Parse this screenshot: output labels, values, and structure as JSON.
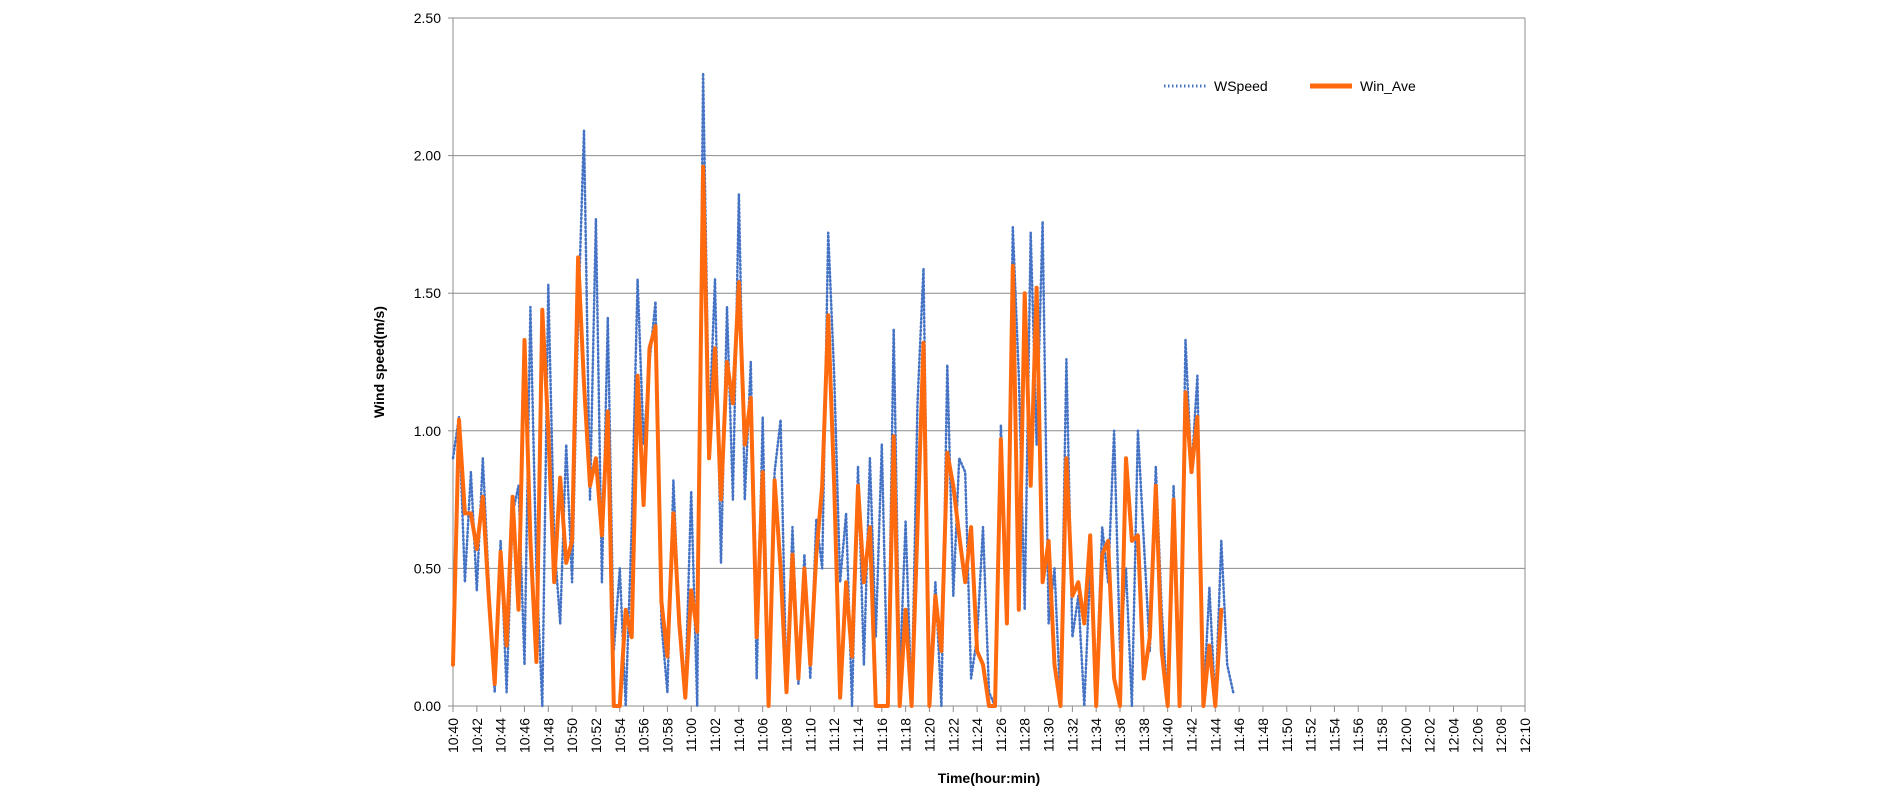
{
  "chart_data": {
    "type": "line",
    "xlabel": "Time(hour:min)",
    "ylabel": "Wind speed(m/s)",
    "ylim": [
      0,
      2.5
    ],
    "y_ticks": [
      "0.00",
      "0.50",
      "1.00",
      "1.50",
      "2.00",
      "2.50"
    ],
    "x_ticks": [
      "10:40",
      "10:42",
      "10:44",
      "10:46",
      "10:48",
      "10:50",
      "10:52",
      "10:54",
      "10:56",
      "10:58",
      "11:00",
      "11:02",
      "11:04",
      "11:06",
      "11:08",
      "11:10",
      "11:12",
      "11:14",
      "11:16",
      "11:18",
      "11:20",
      "11:22",
      "11:24",
      "11:26",
      "11:28",
      "11:30",
      "11:32",
      "11:34",
      "11:36",
      "11:38",
      "11:40",
      "11:42",
      "11:44",
      "11:46",
      "11:48",
      "11:50",
      "11:52",
      "11:54",
      "11:56",
      "11:58",
      "12:00",
      "12:02",
      "12:04",
      "12:06",
      "12:08",
      "12:10"
    ],
    "grid": "horizontal",
    "legend_position": "top-right",
    "colors": {
      "WSpeed": "#4472C4",
      "Win_Ave": "#FF6A0E"
    },
    "series": [
      {
        "name": "WSpeed",
        "style": "dotted",
        "points": [
          [
            "10:40",
            0.9
          ],
          [
            "10:40.5",
            1.05
          ],
          [
            "10:41",
            0.45
          ],
          [
            "10:41.5",
            0.85
          ],
          [
            "10:42",
            0.42
          ],
          [
            "10:42.5",
            0.9
          ],
          [
            "10:43",
            0.45
          ],
          [
            "10:43.5",
            0.05
          ],
          [
            "10:44",
            0.6
          ],
          [
            "10:44.5",
            0.05
          ],
          [
            "10:45",
            0.7
          ],
          [
            "10:45.5",
            0.8
          ],
          [
            "10:46",
            0.15
          ],
          [
            "10:46.5",
            1.45
          ],
          [
            "10:47",
            0.5
          ],
          [
            "10:47.5",
            0.0
          ],
          [
            "10:48",
            1.53
          ],
          [
            "10:48.5",
            0.6
          ],
          [
            "10:49",
            0.3
          ],
          [
            "10:49.5",
            0.95
          ],
          [
            "10:50",
            0.45
          ],
          [
            "10:50.5",
            1.4
          ],
          [
            "10:51",
            2.09
          ],
          [
            "10:51.5",
            0.75
          ],
          [
            "10:52",
            1.77
          ],
          [
            "10:52.5",
            0.45
          ],
          [
            "10:53",
            1.41
          ],
          [
            "10:53.5",
            0.2
          ],
          [
            "10:54",
            0.5
          ],
          [
            "10:54.5",
            0.0
          ],
          [
            "10:55",
            0.65
          ],
          [
            "10:55.5",
            1.55
          ],
          [
            "10:56",
            0.95
          ],
          [
            "10:56.5",
            1.25
          ],
          [
            "10:57",
            1.47
          ],
          [
            "10:57.5",
            0.3
          ],
          [
            "10:58",
            0.05
          ],
          [
            "10:58.5",
            0.82
          ],
          [
            "10:59",
            0.3
          ],
          [
            "10:59.5",
            0.05
          ],
          [
            "11:00",
            0.78
          ],
          [
            "11:00.5",
            0.0
          ],
          [
            "11:01",
            2.3
          ],
          [
            "11:01.5",
            1.0
          ],
          [
            "11:02",
            1.55
          ],
          [
            "11:02.5",
            0.52
          ],
          [
            "11:03",
            1.45
          ],
          [
            "11:03.5",
            0.75
          ],
          [
            "11:04",
            1.86
          ],
          [
            "11:04.5",
            0.75
          ],
          [
            "11:05",
            1.25
          ],
          [
            "11:05.5",
            0.1
          ],
          [
            "11:06",
            1.05
          ],
          [
            "11:06.5",
            0.0
          ],
          [
            "11:07",
            0.85
          ],
          [
            "11:07.5",
            1.04
          ],
          [
            "11:08",
            0.05
          ],
          [
            "11:08.5",
            0.65
          ],
          [
            "11:09",
            0.08
          ],
          [
            "11:09.5",
            0.55
          ],
          [
            "11:10",
            0.1
          ],
          [
            "11:10.5",
            0.68
          ],
          [
            "11:11",
            0.5
          ],
          [
            "11:11.5",
            1.72
          ],
          [
            "11:12",
            1.2
          ],
          [
            "11:12.5",
            0.45
          ],
          [
            "11:13",
            0.7
          ],
          [
            "11:13.5",
            0.0
          ],
          [
            "11:14",
            0.87
          ],
          [
            "11:14.5",
            0.15
          ],
          [
            "11:15",
            0.9
          ],
          [
            "11:15.5",
            0.25
          ],
          [
            "11:16",
            0.95
          ],
          [
            "11:16.5",
            0.0
          ],
          [
            "11:17",
            1.37
          ],
          [
            "11:17.5",
            0.1
          ],
          [
            "11:18",
            0.67
          ],
          [
            "11:18.5",
            0.0
          ],
          [
            "11:19",
            1.1
          ],
          [
            "11:19.5",
            1.59
          ],
          [
            "11:20",
            0.05
          ],
          [
            "11:20.5",
            0.45
          ],
          [
            "11:21",
            0.0
          ],
          [
            "11:21.5",
            1.24
          ],
          [
            "11:22",
            0.4
          ],
          [
            "11:22.5",
            0.9
          ],
          [
            "11:23",
            0.85
          ],
          [
            "11:23.5",
            0.1
          ],
          [
            "11:24",
            0.25
          ],
          [
            "11:24.5",
            0.65
          ],
          [
            "11:25",
            0.05
          ],
          [
            "11:25.5",
            0.0
          ],
          [
            "11:26",
            1.02
          ],
          [
            "11:26.5",
            0.3
          ],
          [
            "11:27",
            1.74
          ],
          [
            "11:27.5",
            1.2
          ],
          [
            "11:28",
            0.35
          ],
          [
            "11:28.5",
            1.72
          ],
          [
            "11:29",
            0.95
          ],
          [
            "11:29.5",
            1.76
          ],
          [
            "11:30",
            0.3
          ],
          [
            "11:30.5",
            0.5
          ],
          [
            "11:31",
            0.0
          ],
          [
            "11:31.5",
            1.26
          ],
          [
            "11:32",
            0.25
          ],
          [
            "11:32.5",
            0.4
          ],
          [
            "11:33",
            0.0
          ],
          [
            "11:33.5",
            0.5
          ],
          [
            "11:34",
            0.05
          ],
          [
            "11:34.5",
            0.65
          ],
          [
            "11:35",
            0.45
          ],
          [
            "11:35.5",
            1.0
          ],
          [
            "11:36",
            0.2
          ],
          [
            "11:36.5",
            0.5
          ],
          [
            "11:37",
            0.0
          ],
          [
            "11:37.5",
            1.0
          ],
          [
            "11:38",
            0.6
          ],
          [
            "11:38.5",
            0.2
          ],
          [
            "11:39",
            0.87
          ],
          [
            "11:39.5",
            0.35
          ],
          [
            "11:40",
            0.0
          ],
          [
            "11:40.5",
            0.8
          ],
          [
            "11:41",
            0.0
          ],
          [
            "11:41.5",
            1.33
          ],
          [
            "11:42",
            0.85
          ],
          [
            "11:42.5",
            1.2
          ],
          [
            "11:43",
            0.0
          ],
          [
            "11:43.5",
            0.43
          ],
          [
            "11:44",
            0.0
          ],
          [
            "11:44.5",
            0.6
          ],
          [
            "11:45",
            0.15
          ],
          [
            "11:45.5",
            0.05
          ]
        ]
      },
      {
        "name": "Win_Ave",
        "style": "solid",
        "points": [
          [
            "10:40",
            0.15
          ],
          [
            "10:40.5",
            1.04
          ],
          [
            "10:41",
            0.7
          ],
          [
            "10:41.5",
            0.7
          ],
          [
            "10:42",
            0.57
          ],
          [
            "10:42.5",
            0.76
          ],
          [
            "10:43",
            0.4
          ],
          [
            "10:43.5",
            0.08
          ],
          [
            "10:44",
            0.56
          ],
          [
            "10:44.5",
            0.22
          ],
          [
            "10:45",
            0.76
          ],
          [
            "10:45.5",
            0.35
          ],
          [
            "10:46",
            1.33
          ],
          [
            "10:46.5",
            0.6
          ],
          [
            "10:47",
            0.16
          ],
          [
            "10:47.5",
            1.44
          ],
          [
            "10:48",
            1.0
          ],
          [
            "10:48.5",
            0.45
          ],
          [
            "10:49",
            0.83
          ],
          [
            "10:49.5",
            0.52
          ],
          [
            "10:50",
            0.6
          ],
          [
            "10:50.5",
            1.63
          ],
          [
            "10:51",
            1.17
          ],
          [
            "10:51.5",
            0.8
          ],
          [
            "10:52",
            0.9
          ],
          [
            "10:52.5",
            0.62
          ],
          [
            "10:53",
            1.07
          ],
          [
            "10:53.5",
            0.0
          ],
          [
            "10:54",
            0.0
          ],
          [
            "10:54.5",
            0.35
          ],
          [
            "10:55",
            0.25
          ],
          [
            "10:55.5",
            1.2
          ],
          [
            "10:56",
            0.73
          ],
          [
            "10:56.5",
            1.3
          ],
          [
            "10:57",
            1.38
          ],
          [
            "10:57.5",
            0.38
          ],
          [
            "10:58",
            0.18
          ],
          [
            "10:58.5",
            0.7
          ],
          [
            "10:59",
            0.3
          ],
          [
            "10:59.5",
            0.03
          ],
          [
            "11:00",
            0.42
          ],
          [
            "11:00.5",
            0.27
          ],
          [
            "11:01",
            1.96
          ],
          [
            "11:01.5",
            0.9
          ],
          [
            "11:02",
            1.3
          ],
          [
            "11:02.5",
            0.75
          ],
          [
            "11:03",
            1.25
          ],
          [
            "11:03.5",
            1.1
          ],
          [
            "11:04",
            1.54
          ],
          [
            "11:04.5",
            0.95
          ],
          [
            "11:05",
            1.12
          ],
          [
            "11:05.5",
            0.25
          ],
          [
            "11:06",
            0.85
          ],
          [
            "11:06.5",
            0.0
          ],
          [
            "11:07",
            0.82
          ],
          [
            "11:07.5",
            0.5
          ],
          [
            "11:08",
            0.05
          ],
          [
            "11:08.5",
            0.55
          ],
          [
            "11:09",
            0.1
          ],
          [
            "11:09.5",
            0.5
          ],
          [
            "11:10",
            0.15
          ],
          [
            "11:10.5",
            0.55
          ],
          [
            "11:11",
            0.8
          ],
          [
            "11:11.5",
            1.42
          ],
          [
            "11:12",
            0.8
          ],
          [
            "11:12.5",
            0.03
          ],
          [
            "11:13",
            0.45
          ],
          [
            "11:13.5",
            0.18
          ],
          [
            "11:14",
            0.8
          ],
          [
            "11:14.5",
            0.45
          ],
          [
            "11:15",
            0.65
          ],
          [
            "11:15.5",
            0.0
          ],
          [
            "11:16",
            0.0
          ],
          [
            "11:16.5",
            0.0
          ],
          [
            "11:17",
            0.98
          ],
          [
            "11:17.5",
            0.0
          ],
          [
            "11:18",
            0.35
          ],
          [
            "11:18.5",
            0.0
          ],
          [
            "11:19",
            0.65
          ],
          [
            "11:19.5",
            1.32
          ],
          [
            "11:20",
            0.0
          ],
          [
            "11:20.5",
            0.4
          ],
          [
            "11:21",
            0.2
          ],
          [
            "11:21.5",
            0.92
          ],
          [
            "11:22",
            0.8
          ],
          [
            "11:22.5",
            0.62
          ],
          [
            "11:23",
            0.45
          ],
          [
            "11:23.5",
            0.65
          ],
          [
            "11:24",
            0.2
          ],
          [
            "11:24.5",
            0.15
          ],
          [
            "11:25",
            0.0
          ],
          [
            "11:25.5",
            0.0
          ],
          [
            "11:26",
            0.97
          ],
          [
            "11:26.5",
            0.3
          ],
          [
            "11:27",
            1.6
          ],
          [
            "11:27.5",
            0.35
          ],
          [
            "11:28",
            1.5
          ],
          [
            "11:28.5",
            0.8
          ],
          [
            "11:29",
            1.52
          ],
          [
            "11:29.5",
            0.45
          ],
          [
            "11:30",
            0.6
          ],
          [
            "11:30.5",
            0.15
          ],
          [
            "11:31",
            0.0
          ],
          [
            "11:31.5",
            0.9
          ],
          [
            "11:32",
            0.4
          ],
          [
            "11:32.5",
            0.45
          ],
          [
            "11:33",
            0.3
          ],
          [
            "11:33.5",
            0.62
          ],
          [
            "11:34",
            0.0
          ],
          [
            "11:34.5",
            0.55
          ],
          [
            "11:35",
            0.6
          ],
          [
            "11:35.5",
            0.1
          ],
          [
            "11:36",
            0.0
          ],
          [
            "11:36.5",
            0.9
          ],
          [
            "11:37",
            0.6
          ],
          [
            "11:37.5",
            0.62
          ],
          [
            "11:38",
            0.1
          ],
          [
            "11:38.5",
            0.25
          ],
          [
            "11:39",
            0.8
          ],
          [
            "11:39.5",
            0.2
          ],
          [
            "11:40",
            0.0
          ],
          [
            "11:40.5",
            0.75
          ],
          [
            "11:41",
            0.0
          ],
          [
            "11:41.5",
            1.14
          ],
          [
            "11:42",
            0.85
          ],
          [
            "11:42.5",
            1.05
          ],
          [
            "11:43",
            0.0
          ],
          [
            "11:43.5",
            0.22
          ],
          [
            "11:44",
            0.0
          ],
          [
            "11:44.5",
            0.35
          ]
        ]
      }
    ]
  }
}
